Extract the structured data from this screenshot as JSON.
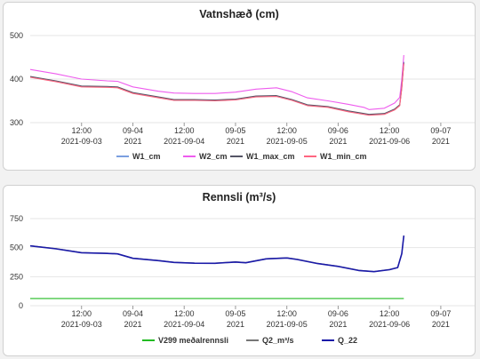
{
  "chart_data": [
    {
      "type": "line",
      "title": "Vatnshæð (cm)",
      "xlabel": "",
      "ylabel": "",
      "ylim": [
        300,
        500
      ],
      "yticks": [
        300,
        400,
        500
      ],
      "xlim": [
        0,
        4.33
      ],
      "xticks": [
        {
          "x": 0.5,
          "label1": "12:00",
          "label2": "2021-09-03"
        },
        {
          "x": 1.0,
          "label1": "09-04",
          "label2": "2021"
        },
        {
          "x": 1.5,
          "label1": "12:00",
          "label2": "2021-09-04"
        },
        {
          "x": 2.0,
          "label1": "09-05",
          "label2": "2021"
        },
        {
          "x": 2.5,
          "label1": "12:00",
          "label2": "2021-09-05"
        },
        {
          "x": 3.0,
          "label1": "09-06",
          "label2": "2021"
        },
        {
          "x": 3.5,
          "label1": "12:00",
          "label2": "2021-09-06"
        },
        {
          "x": 4.0,
          "label1": "09-07",
          "label2": "2021"
        }
      ],
      "grid": true,
      "legend_position": "bottom",
      "series": [
        {
          "name": "W1_cm",
          "color": "#7b9fe0",
          "points": [
            [
              0,
              405
            ],
            [
              0.25,
              395
            ],
            [
              0.5,
              383
            ],
            [
              0.75,
              382
            ],
            [
              0.85,
              381
            ],
            [
              1.0,
              368
            ],
            [
              1.25,
              358
            ],
            [
              1.4,
              352
            ],
            [
              1.6,
              352
            ],
            [
              1.8,
              351
            ],
            [
              2.0,
              353
            ],
            [
              2.2,
              360
            ],
            [
              2.4,
              361
            ],
            [
              2.55,
              352
            ],
            [
              2.7,
              340
            ],
            [
              2.9,
              336
            ],
            [
              3.1,
              326
            ],
            [
              3.25,
              320
            ],
            [
              3.3,
              318
            ],
            [
              3.45,
              320
            ],
            [
              3.55,
              330
            ],
            [
              3.6,
              340
            ],
            [
              3.62,
              380
            ],
            [
              3.64,
              440
            ]
          ]
        },
        {
          "name": "W2_cm",
          "color": "#ee5cee",
          "points": [
            [
              0,
              422
            ],
            [
              0.25,
              412
            ],
            [
              0.5,
              400
            ],
            [
              0.75,
              396
            ],
            [
              0.85,
              395
            ],
            [
              1.0,
              382
            ],
            [
              1.25,
              372
            ],
            [
              1.4,
              368
            ],
            [
              1.6,
              367
            ],
            [
              1.8,
              367
            ],
            [
              2.0,
              370
            ],
            [
              2.2,
              377
            ],
            [
              2.4,
              380
            ],
            [
              2.55,
              371
            ],
            [
              2.7,
              357
            ],
            [
              2.9,
              350
            ],
            [
              3.1,
              342
            ],
            [
              3.25,
              335
            ],
            [
              3.3,
              330
            ],
            [
              3.45,
              333
            ],
            [
              3.55,
              345
            ],
            [
              3.6,
              358
            ],
            [
              3.62,
              400
            ],
            [
              3.64,
              455
            ]
          ]
        },
        {
          "name": "W1_max_cm",
          "color": "#555566",
          "points": [
            [
              0,
              406
            ],
            [
              0.25,
              396
            ],
            [
              0.5,
              384
            ],
            [
              0.75,
              383
            ],
            [
              0.85,
              382
            ],
            [
              1.0,
              369
            ],
            [
              1.25,
              359
            ],
            [
              1.4,
              353
            ],
            [
              1.6,
              353
            ],
            [
              1.8,
              352
            ],
            [
              2.0,
              354
            ],
            [
              2.2,
              361
            ],
            [
              2.4,
              362
            ],
            [
              2.55,
              353
            ],
            [
              2.7,
              341
            ],
            [
              2.9,
              337
            ],
            [
              3.1,
              327
            ],
            [
              3.25,
              321
            ],
            [
              3.3,
              319
            ],
            [
              3.45,
              321
            ],
            [
              3.55,
              331
            ],
            [
              3.6,
              341
            ],
            [
              3.62,
              382
            ],
            [
              3.64,
              438
            ]
          ]
        },
        {
          "name": "W1_min_cm",
          "color": "#ff6680",
          "points": [
            [
              0,
              404
            ],
            [
              0.25,
              394
            ],
            [
              0.5,
              382
            ],
            [
              0.75,
              381
            ],
            [
              0.85,
              380
            ],
            [
              1.0,
              367
            ],
            [
              1.25,
              357
            ],
            [
              1.4,
              351
            ],
            [
              1.6,
              351
            ],
            [
              1.8,
              350
            ],
            [
              2.0,
              352
            ],
            [
              2.2,
              359
            ],
            [
              2.4,
              360
            ],
            [
              2.55,
              351
            ],
            [
              2.7,
              339
            ],
            [
              2.9,
              335
            ],
            [
              3.1,
              325
            ],
            [
              3.25,
              319
            ],
            [
              3.3,
              317
            ],
            [
              3.45,
              319
            ],
            [
              3.55,
              329
            ],
            [
              3.6,
              339
            ],
            [
              3.62,
              378
            ],
            [
              3.64,
              436
            ]
          ]
        }
      ]
    },
    {
      "type": "line",
      "title": "Rennsli (m³/s)",
      "xlabel": "",
      "ylabel": "",
      "ylim": [
        0,
        750
      ],
      "yticks": [
        0,
        250,
        500,
        750
      ],
      "xlim": [
        0,
        4.33
      ],
      "xticks": [
        {
          "x": 0.5,
          "label1": "12:00",
          "label2": "2021-09-03"
        },
        {
          "x": 1.0,
          "label1": "09-04",
          "label2": "2021"
        },
        {
          "x": 1.5,
          "label1": "12:00",
          "label2": "2021-09-04"
        },
        {
          "x": 2.0,
          "label1": "09-05",
          "label2": "2021"
        },
        {
          "x": 2.5,
          "label1": "12:00",
          "label2": "2021-09-05"
        },
        {
          "x": 3.0,
          "label1": "09-06",
          "label2": "2021"
        },
        {
          "x": 3.5,
          "label1": "12:00",
          "label2": "2021-09-06"
        },
        {
          "x": 4.0,
          "label1": "09-07",
          "label2": "2021"
        }
      ],
      "grid": true,
      "legend_position": "bottom",
      "series": [
        {
          "name": "V299 meðalrennsli",
          "color": "#22bb22",
          "points": [
            [
              0,
              62
            ],
            [
              3.64,
              62
            ]
          ]
        },
        {
          "name": "Q2_m³/s",
          "color": "#777777",
          "points": [
            [
              0,
              517
            ],
            [
              0.25,
              492
            ],
            [
              0.5,
              458
            ],
            [
              0.75,
              452
            ],
            [
              0.85,
              448
            ],
            [
              1.0,
              410
            ],
            [
              1.25,
              390
            ],
            [
              1.4,
              375
            ],
            [
              1.6,
              368
            ],
            [
              1.8,
              367
            ],
            [
              2.0,
              378
            ],
            [
              2.1,
              372
            ],
            [
              2.3,
              405
            ],
            [
              2.5,
              413
            ],
            [
              2.6,
              400
            ],
            [
              2.8,
              365
            ],
            [
              3.0,
              340
            ],
            [
              3.2,
              305
            ],
            [
              3.35,
              295
            ],
            [
              3.5,
              312
            ],
            [
              3.58,
              330
            ],
            [
              3.62,
              450
            ],
            [
              3.64,
              605
            ]
          ]
        },
        {
          "name": "Q_22",
          "color": "#1a1aa8",
          "points": [
            [
              0,
              515
            ],
            [
              0.25,
              490
            ],
            [
              0.5,
              456
            ],
            [
              0.75,
              450
            ],
            [
              0.85,
              446
            ],
            [
              1.0,
              408
            ],
            [
              1.25,
              388
            ],
            [
              1.4,
              373
            ],
            [
              1.6,
              366
            ],
            [
              1.8,
              365
            ],
            [
              2.0,
              376
            ],
            [
              2.1,
              370
            ],
            [
              2.3,
              403
            ],
            [
              2.5,
              411
            ],
            [
              2.6,
              398
            ],
            [
              2.8,
              363
            ],
            [
              3.0,
              338
            ],
            [
              3.2,
              303
            ],
            [
              3.35,
              293
            ],
            [
              3.5,
              310
            ],
            [
              3.58,
              328
            ],
            [
              3.62,
              448
            ],
            [
              3.64,
              603
            ]
          ]
        }
      ]
    }
  ]
}
